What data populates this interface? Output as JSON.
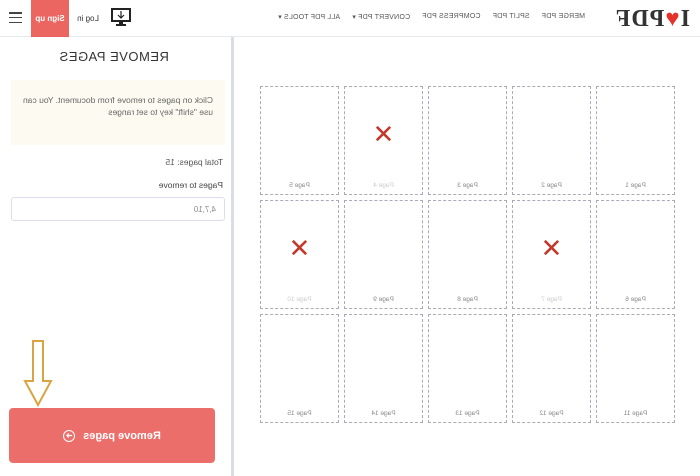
{
  "header": {
    "logo": "I♥PDF",
    "nav": [
      "MERGE PDF",
      "SPLIT PDF",
      "COMPRESS PDF",
      "CONVERT PDF ▾",
      "ALL PDF TOOLS ▾"
    ],
    "login": "Log in",
    "signup": "Sign up",
    "accent": "#e5322d"
  },
  "sidebar": {
    "title": "REMOVE PAGES",
    "info": "Click on pages to remove from document. You can use \"shift\" key to set ranges",
    "total": "Total pages: 15",
    "pages_label": "Pages to remove",
    "pages_value": "4,7,10",
    "remove_button": "Remove pages"
  },
  "pages": [
    {
      "label": "Page 1",
      "removed": false
    },
    {
      "label": "Page 2",
      "removed": false
    },
    {
      "label": "Page 3",
      "removed": false
    },
    {
      "label": "Page 4",
      "removed": true
    },
    {
      "label": "Page 5",
      "removed": false
    },
    {
      "label": "Page 6",
      "removed": false
    },
    {
      "label": "Page 7",
      "removed": true
    },
    {
      "label": "Page 8",
      "removed": false
    },
    {
      "label": "Page 9",
      "removed": false
    },
    {
      "label": "Page 10",
      "removed": true
    },
    {
      "label": "Page 11",
      "removed": false
    },
    {
      "label": "Page 12",
      "removed": false
    },
    {
      "label": "Page 13",
      "removed": false
    },
    {
      "label": "Page 14",
      "removed": false
    },
    {
      "label": "Page 15",
      "removed": false
    }
  ]
}
